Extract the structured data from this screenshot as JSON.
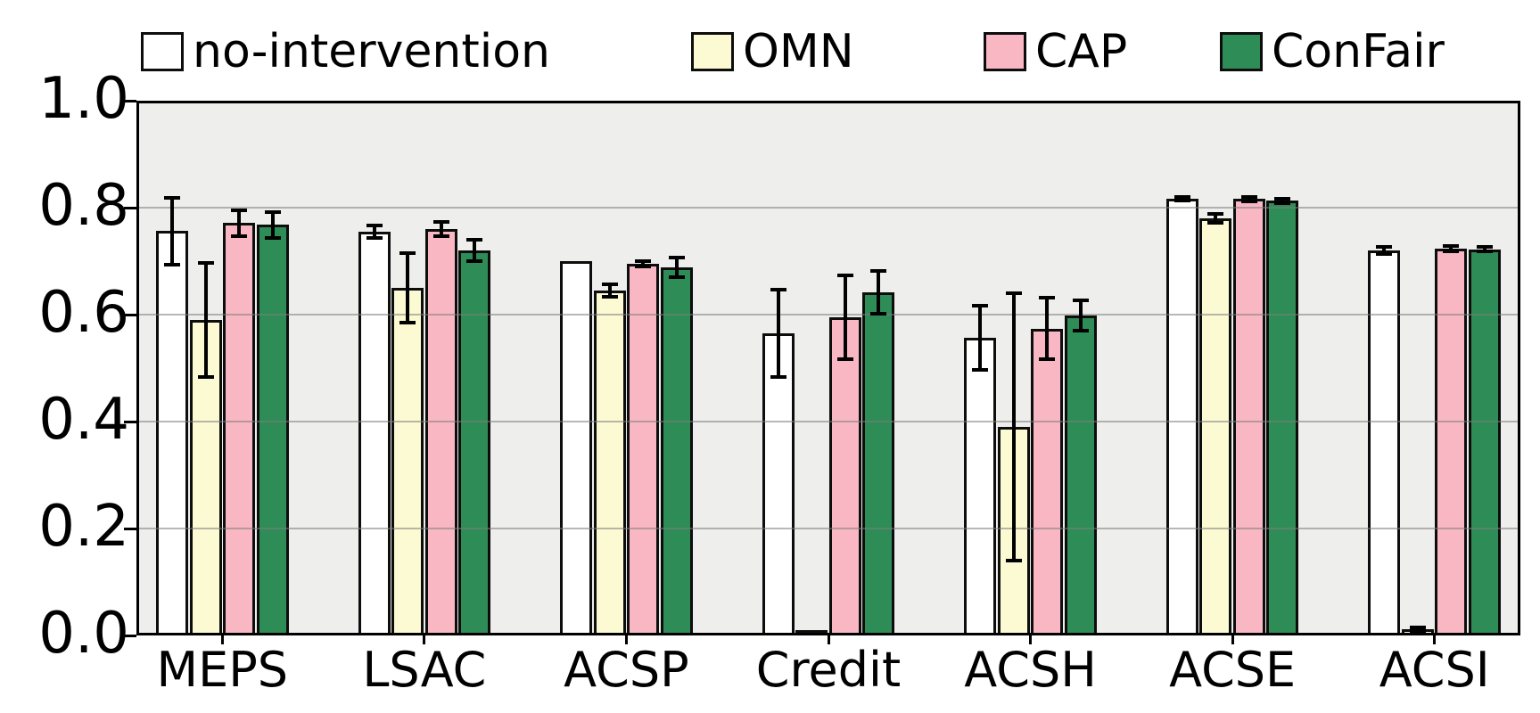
{
  "chart_data": {
    "type": "bar",
    "title": "",
    "xlabel": "",
    "ylabel": "",
    "categories": [
      "MEPS",
      "LSAC",
      "ACSP",
      "Credit",
      "ACSH",
      "ACSE",
      "ACSI"
    ],
    "series": [
      {
        "name": "no-intervention",
        "color": "#ffffff",
        "values": [
          0.756,
          0.755,
          0.7,
          0.565,
          0.557,
          0.817,
          0.72
        ],
        "errors": [
          0.062,
          0.012,
          0.0,
          0.082,
          0.06,
          0.003,
          0.006
        ]
      },
      {
        "name": "OMN",
        "color": "#fbfad2",
        "values": [
          0.59,
          0.65,
          0.645,
          0.01,
          0.39,
          0.78,
          0.012
        ],
        "errors": [
          0.106,
          0.065,
          0.012,
          0.0,
          0.25,
          0.009,
          0.003
        ]
      },
      {
        "name": "CAP",
        "color": "#f9b7c3",
        "values": [
          0.771,
          0.76,
          0.695,
          0.595,
          0.574,
          0.816,
          0.723
        ],
        "errors": [
          0.024,
          0.014,
          0.005,
          0.078,
          0.057,
          0.004,
          0.005
        ]
      },
      {
        "name": "ConFair",
        "color": "#2e8c57",
        "values": [
          0.768,
          0.72,
          0.688,
          0.642,
          0.598,
          0.813,
          0.722
        ],
        "errors": [
          0.024,
          0.02,
          0.018,
          0.04,
          0.028,
          0.004,
          0.004
        ]
      }
    ],
    "ylim": [
      0.0,
      1.0
    ],
    "yticks": [
      0.0,
      0.2,
      0.4,
      0.6,
      0.8,
      1.0
    ],
    "ytick_labels": [
      "0.0",
      "0.2",
      "0.4",
      "0.6",
      "0.8",
      "1.0"
    ],
    "error_bars": "symmetric, black, with caps",
    "grid": "horizontal gridlines at 0.2 steps, drawn over bars",
    "legend_position": "top horizontal",
    "plot_background": "#eeeeec",
    "bar_edge_color": "#0d0d0d"
  }
}
